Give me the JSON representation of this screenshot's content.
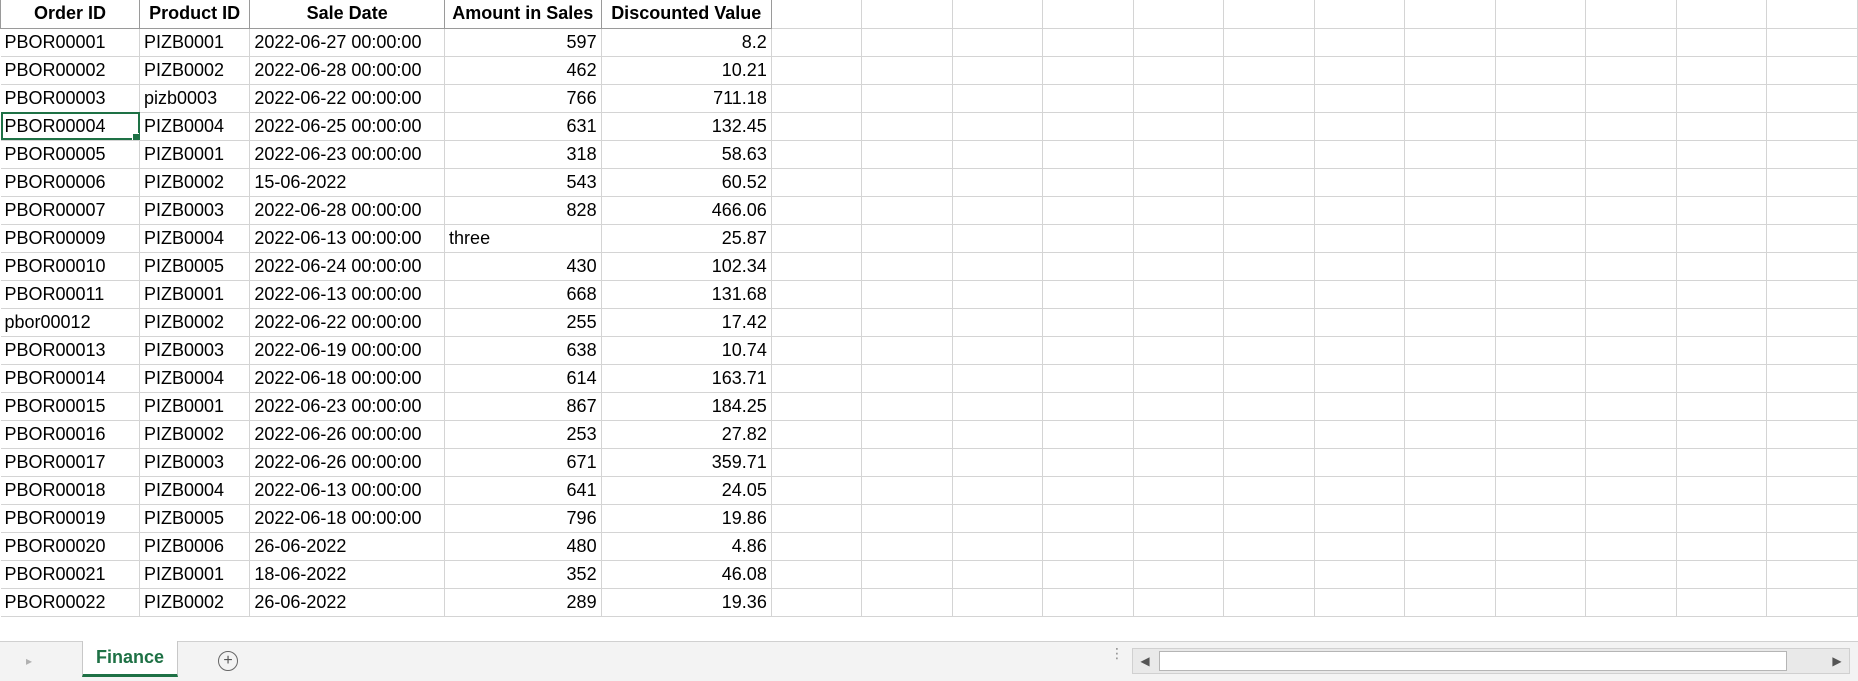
{
  "sheet": {
    "headers": [
      "Order ID",
      "Product ID",
      "Sale Date",
      "Amount in Sales",
      "Discounted Value"
    ],
    "rows": [
      [
        "PBOR00001",
        "PIZB0001",
        "2022-06-27 00:00:00",
        "597",
        "8.2"
      ],
      [
        "PBOR00002",
        "PIZB0002",
        "2022-06-28 00:00:00",
        "462",
        "10.21"
      ],
      [
        "PBOR00003",
        "pizb0003",
        "2022-06-22 00:00:00",
        "766",
        "711.18"
      ],
      [
        "PBOR00004",
        "PIZB0004",
        "2022-06-25 00:00:00",
        "631",
        "132.45"
      ],
      [
        "PBOR00005",
        "PIZB0001",
        "2022-06-23 00:00:00",
        "318",
        "58.63"
      ],
      [
        "PBOR00006",
        "PIZB0002",
        "15-06-2022",
        "543",
        "60.52"
      ],
      [
        "PBOR00007",
        "PIZB0003",
        "2022-06-28 00:00:00",
        "828",
        "466.06"
      ],
      [
        "PBOR00009",
        "PIZB0004",
        "2022-06-13 00:00:00",
        "three",
        "25.87"
      ],
      [
        "PBOR00010",
        "PIZB0005",
        "2022-06-24 00:00:00",
        "430",
        "102.34"
      ],
      [
        "PBOR00011",
        "PIZB0001",
        "2022-06-13 00:00:00",
        "668",
        "131.68"
      ],
      [
        "pbor00012",
        "PIZB0002",
        "2022-06-22 00:00:00",
        "255",
        "17.42"
      ],
      [
        "PBOR00013",
        "PIZB0003",
        "2022-06-19 00:00:00",
        "638",
        "10.74"
      ],
      [
        "PBOR00014",
        "PIZB0004",
        "2022-06-18 00:00:00",
        "614",
        "163.71"
      ],
      [
        "PBOR00015",
        "PIZB0001",
        "2022-06-23 00:00:00",
        "867",
        "184.25"
      ],
      [
        "PBOR00016",
        "PIZB0002",
        "2022-06-26 00:00:00",
        "253",
        "27.82"
      ],
      [
        "PBOR00017",
        "PIZB0003",
        "2022-06-26 00:00:00",
        "671",
        "359.71"
      ],
      [
        "PBOR00018",
        "PIZB0004",
        "2022-06-13 00:00:00",
        "641",
        "24.05"
      ],
      [
        "PBOR00019",
        "PIZB0005",
        "2022-06-18 00:00:00",
        "796",
        "19.86"
      ],
      [
        "PBOR00020",
        "PIZB0006",
        "26-06-2022",
        "480",
        "4.86"
      ],
      [
        "PBOR00021",
        "PIZB0001",
        "18-06-2022",
        "352",
        "46.08"
      ],
      [
        "PBOR00022",
        "PIZB0002",
        "26-06-2022",
        "289",
        "19.36"
      ]
    ],
    "selected_cell": "PBOR00004"
  },
  "tabs": {
    "active": "Finance",
    "add_icon": "plus-circle-icon",
    "prev_icon": "chevron-left-icon"
  },
  "colors": {
    "accent": "#1e7145",
    "gridline": "#d4d4d4",
    "tab_bar": "#f3f3f3"
  }
}
